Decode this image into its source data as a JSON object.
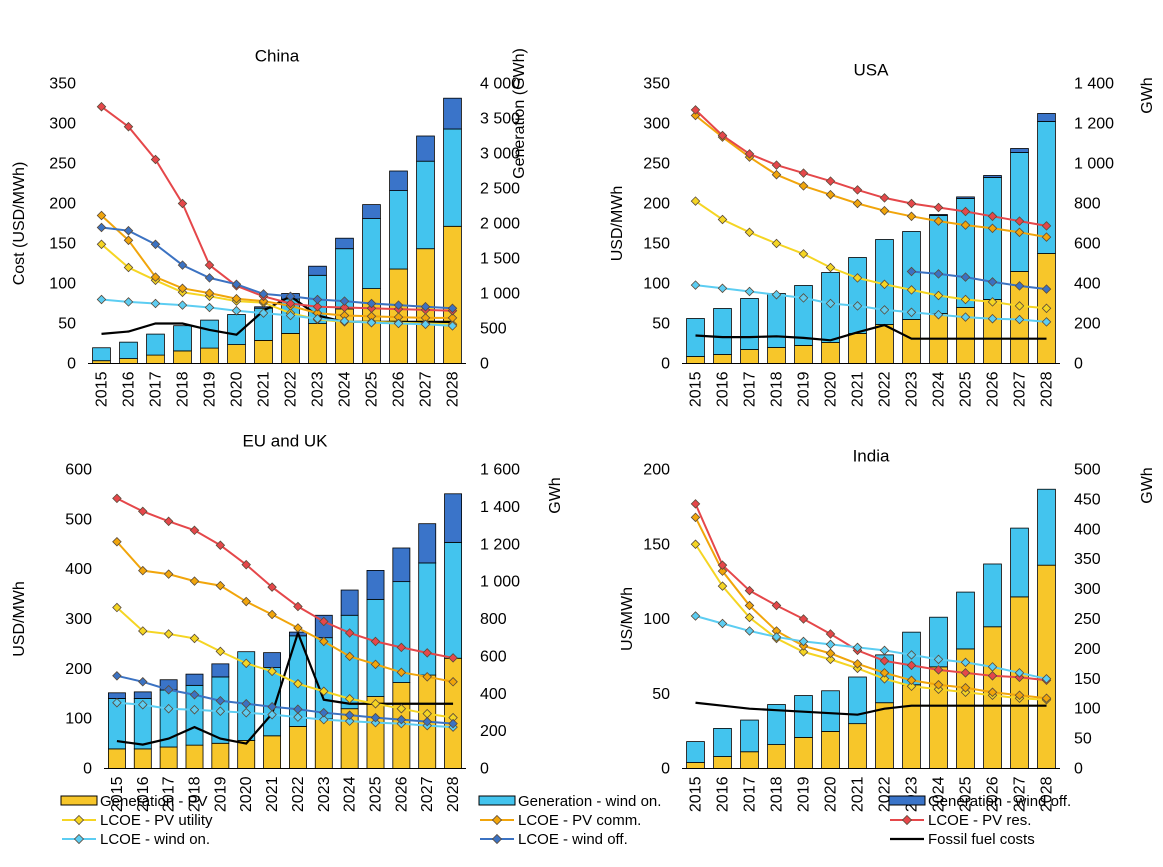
{
  "colors": {
    "gen_pv": "#f7c62a",
    "gen_wind_on": "#43c4ee",
    "gen_wind_off": "#3a74c9",
    "lcoe_pv_utility": "#f5d523",
    "lcoe_pv_comm": "#f1a50b",
    "lcoe_pv_res": "#e5474a",
    "lcoe_wind_on": "#5ccdf2",
    "lcoe_wind_off": "#3b72c2",
    "fossil": "#000000"
  },
  "legend": [
    {
      "key": "gen_pv",
      "kind": "bar",
      "label": "Generation - PV"
    },
    {
      "key": "gen_wind_on",
      "kind": "bar",
      "label": "Generation - wind on."
    },
    {
      "key": "gen_wind_off",
      "kind": "bar",
      "label": "Generation - wind off."
    },
    {
      "key": "lcoe_pv_utility",
      "kind": "marker",
      "label": "LCOE - PV utility"
    },
    {
      "key": "lcoe_pv_comm",
      "kind": "marker",
      "label": "LCOE - PV comm."
    },
    {
      "key": "lcoe_pv_res",
      "kind": "marker",
      "label": "LCOE - PV res."
    },
    {
      "key": "lcoe_wind_on",
      "kind": "marker",
      "label": "LCOE - wind on."
    },
    {
      "key": "lcoe_wind_off",
      "kind": "marker",
      "label": "LCOE - wind off."
    },
    {
      "key": "fossil",
      "kind": "line",
      "label": "Fossil fuel costs"
    }
  ],
  "chart_data": [
    {
      "type": "bar",
      "title": "China",
      "ylabel": "Cost  (USD/MWh)",
      "y2label": "Generation (GWh)",
      "ylim": [
        0,
        350
      ],
      "y2lim": [
        0,
        4000
      ],
      "yticks": [
        "0",
        "50",
        "100",
        "150",
        "200",
        "250",
        "300",
        "350"
      ],
      "y2ticks": [
        "0",
        "500",
        "1 000",
        "1 500",
        "2 000",
        "2 500",
        "3 000",
        "3 500",
        "4 000"
      ],
      "categories": [
        "2015",
        "2016",
        "2017",
        "2018",
        "2019",
        "2020",
        "2021",
        "2022",
        "2023",
        "2024",
        "2025",
        "2026",
        "2027",
        "2028"
      ],
      "generation": {
        "gen_pv": [
          40,
          70,
          120,
          180,
          220,
          270,
          330,
          430,
          570,
          780,
          1070,
          1350,
          1640,
          1960
        ],
        "gen_wind_on": [
          185,
          235,
          300,
          360,
          400,
          430,
          460,
          490,
          690,
          860,
          1000,
          1120,
          1250,
          1390
        ],
        "gen_wind_off": [
          0,
          0,
          0,
          0,
          0,
          0,
          20,
          80,
          130,
          150,
          200,
          280,
          360,
          440
        ]
      },
      "lcoe": {
        "lcoe_pv_utility": [
          149,
          120,
          104,
          89,
          84,
          78,
          76,
          63,
          55,
          52,
          52,
          51,
          50,
          49
        ],
        "lcoe_pv_comm": [
          185,
          154,
          108,
          94,
          88,
          81,
          78,
          72,
          63,
          60,
          59,
          58,
          57,
          57
        ],
        "lcoe_pv_res": [
          321,
          296,
          255,
          200,
          123,
          97,
          84,
          75,
          71,
          70,
          69,
          68,
          67,
          66
        ],
        "lcoe_wind_on": [
          80,
          77,
          75,
          73,
          70,
          66,
          63,
          60,
          56,
          53,
          51,
          50,
          49,
          47
        ],
        "lcoe_wind_off": [
          170,
          166,
          149,
          123,
          107,
          99,
          87,
          84,
          80,
          78,
          75,
          73,
          71,
          69
        ]
      },
      "fossil": [
        37,
        40,
        50,
        50,
        42,
        36,
        66,
        84,
        60,
        52,
        52,
        52,
        52,
        52
      ]
    },
    {
      "type": "bar",
      "title": "USA",
      "ylabel": "USD/MWh",
      "y2label": "GWh",
      "ylim": [
        0,
        350
      ],
      "y2lim": [
        0,
        1400
      ],
      "yticks": [
        "0",
        "50",
        "100",
        "150",
        "200",
        "250",
        "300",
        "350"
      ],
      "y2ticks": [
        "0",
        "200",
        "400",
        "600",
        "800",
        "1 000",
        "1 200",
        "1 400"
      ],
      "categories": [
        "2015",
        "2016",
        "2017",
        "2018",
        "2019",
        "2020",
        "2021",
        "2022",
        "2023",
        "2024",
        "2025",
        "2026",
        "2027",
        "2028"
      ],
      "generation": {
        "gen_pv": [
          35,
          45,
          70,
          80,
          90,
          105,
          150,
          195,
          220,
          250,
          280,
          320,
          460,
          550
        ],
        "gen_wind_on": [
          190,
          230,
          255,
          270,
          300,
          350,
          380,
          425,
          440,
          490,
          545,
          610,
          595,
          660
        ],
        "gen_wind_off": [
          0,
          0,
          0,
          0,
          0,
          0,
          0,
          0,
          0,
          5,
          8,
          10,
          20,
          40
        ]
      },
      "lcoe": {
        "lcoe_pv_utility": [
          203,
          180,
          164,
          150,
          137,
          120,
          107,
          99,
          92,
          85,
          80,
          77,
          72,
          69
        ],
        "lcoe_pv_comm": [
          310,
          283,
          258,
          236,
          222,
          211,
          200,
          191,
          184,
          178,
          173,
          169,
          164,
          158
        ],
        "lcoe_pv_res": [
          317,
          285,
          262,
          248,
          238,
          228,
          217,
          207,
          200,
          195,
          190,
          184,
          178,
          172
        ],
        "lcoe_wind_on": [
          98,
          94,
          90,
          86,
          82,
          75,
          72,
          67,
          64,
          61,
          58,
          56,
          55,
          52
        ],
        "lcoe_wind_off": [
          null,
          null,
          null,
          null,
          null,
          null,
          null,
          null,
          115,
          112,
          108,
          102,
          97,
          93
        ]
      },
      "fossil": [
        35,
        33,
        33,
        34,
        32,
        29,
        39,
        48,
        31,
        31,
        31,
        31,
        31,
        31
      ]
    },
    {
      "type": "bar",
      "title": "EU and UK",
      "ylabel": "USD/MWh",
      "y2label": "GWh",
      "ylim": [
        0,
        600
      ],
      "y2lim": [
        0,
        1600
      ],
      "yticks": [
        "0",
        "100",
        "200",
        "300",
        "400",
        "500",
        "600"
      ],
      "y2ticks": [
        "0",
        "200",
        "400",
        "600",
        "800",
        "1 000",
        "1 200",
        "1 400",
        "1 600"
      ],
      "categories": [
        "2015",
        "2016",
        "2017",
        "2018",
        "2019",
        "2020",
        "2021",
        "2022",
        "2023",
        "2024",
        "2025",
        "2026",
        "2027",
        "2028"
      ],
      "generation": {
        "gen_pv": [
          105,
          105,
          115,
          125,
          135,
          150,
          175,
          225,
          265,
          320,
          385,
          460,
          500,
          590
        ],
        "gen_wind_on": [
          270,
          270,
          305,
          320,
          355,
          475,
          365,
          485,
          435,
          500,
          520,
          540,
          600,
          620
        ],
        "gen_wind_off": [
          30,
          35,
          55,
          60,
          70,
          0,
          80,
          20,
          120,
          135,
          155,
          180,
          210,
          260
        ]
      },
      "lcoe": {
        "lcoe_pv_utility": [
          323,
          276,
          270,
          261,
          235,
          211,
          195,
          170,
          155,
          140,
          130,
          120,
          110,
          102
        ],
        "lcoe_pv_comm": [
          455,
          397,
          390,
          376,
          367,
          335,
          309,
          282,
          255,
          225,
          209,
          193,
          184,
          174
        ],
        "lcoe_pv_res": [
          542,
          516,
          496,
          478,
          448,
          409,
          364,
          325,
          295,
          272,
          255,
          243,
          232,
          222
        ],
        "lcoe_wind_on": [
          132,
          128,
          120,
          118,
          115,
          112,
          108,
          103,
          98,
          95,
          92,
          90,
          86,
          83
        ],
        "lcoe_wind_off": [
          186,
          174,
          158,
          148,
          136,
          130,
          124,
          119,
          112,
          107,
          102,
          98,
          94,
          90
        ]
      },
      "fossil": [
        55,
        48,
        60,
        83,
        60,
        50,
        110,
        272,
        138,
        130,
        130,
        130,
        130,
        130
      ]
    },
    {
      "type": "bar",
      "title": "India",
      "ylabel": "US/MWh",
      "y2label": "GWh",
      "ylim": [
        0,
        200
      ],
      "y2lim": [
        0,
        500
      ],
      "yticks": [
        "0",
        "50",
        "100",
        "150",
        "200"
      ],
      "y2ticks": [
        "0",
        "50",
        "100",
        "150",
        "200",
        "250",
        "300",
        "350",
        "400",
        "450",
        "500"
      ],
      "categories": [
        "2015",
        "2016",
        "2017",
        "2018",
        "2019",
        "2020",
        "2021",
        "2022",
        "2023",
        "2024",
        "2025",
        "2026",
        "2027",
        "2028"
      ],
      "generation": {
        "gen_pv": [
          10,
          20,
          28,
          40,
          52,
          62,
          75,
          110,
          140,
          170,
          200,
          237,
          287,
          340
        ],
        "gen_wind_on": [
          35,
          47,
          53,
          67,
          70,
          68,
          78,
          80,
          88,
          83,
          95,
          105,
          115,
          127
        ],
        "gen_wind_off": [
          0,
          0,
          0,
          0,
          0,
          0,
          0,
          0,
          0,
          0,
          0,
          0,
          0,
          0
        ]
      },
      "lcoe": {
        "lcoe_pv_utility": [
          150,
          122,
          101,
          87,
          78,
          73,
          67,
          60,
          55,
          53,
          51,
          49,
          47,
          46
        ],
        "lcoe_pv_comm": [
          168,
          132,
          109,
          92,
          82,
          77,
          70,
          64,
          59,
          56,
          54,
          51,
          49,
          47
        ],
        "lcoe_pv_res": [
          177,
          136,
          119,
          109,
          100,
          90,
          79,
          72,
          69,
          66,
          64,
          62,
          61,
          59
        ],
        "lcoe_wind_on": [
          102,
          97,
          92,
          88,
          85,
          83,
          81,
          79,
          76,
          73,
          71,
          68,
          64,
          60
        ],
        "lcoe_wind_off": [
          null,
          null,
          null,
          null,
          null,
          null,
          null,
          null,
          null,
          null,
          null,
          null,
          null,
          null
        ]
      },
      "fossil": [
        44,
        42,
        40,
        39,
        38,
        37,
        36,
        40,
        42,
        42,
        42,
        42,
        42,
        42
      ]
    }
  ]
}
